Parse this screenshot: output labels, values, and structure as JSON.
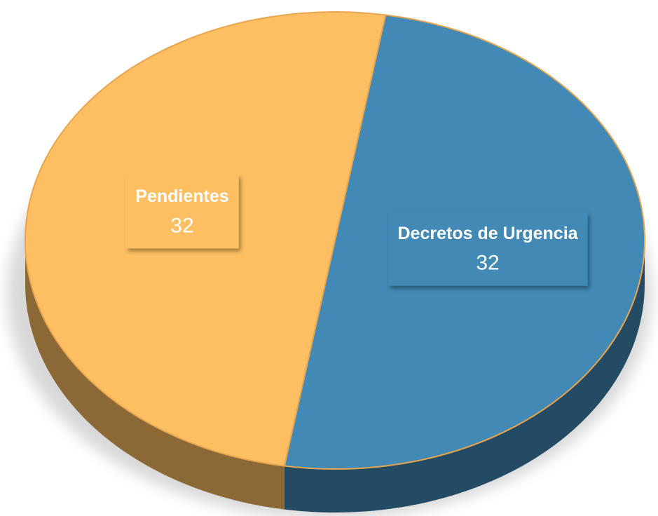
{
  "chart_data": {
    "type": "pie",
    "categories": [
      "Decretos de Urgencia",
      "Pendientes"
    ],
    "values": [
      32,
      32
    ],
    "colors": [
      "#4289b5",
      "#fdbf62"
    ]
  }
}
